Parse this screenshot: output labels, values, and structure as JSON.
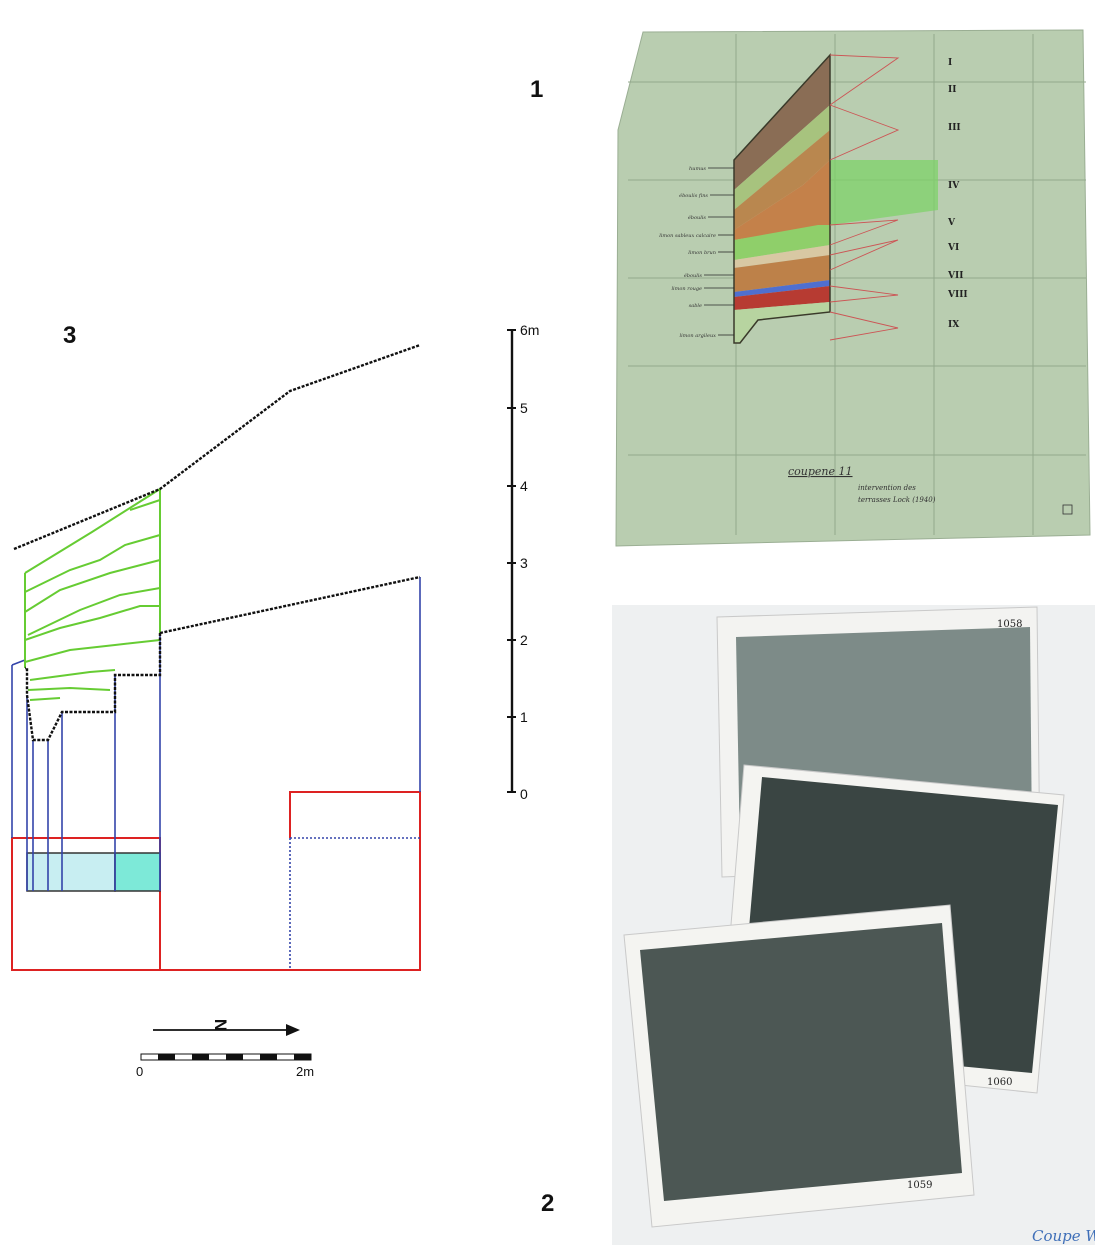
{
  "panels": {
    "p1": "1",
    "p2": "2",
    "p3": "3"
  },
  "scale_vertical": {
    "unit_label": "6m",
    "ticks": [
      "5",
      "4",
      "3",
      "2",
      "1",
      "0"
    ]
  },
  "scale_horizontal": {
    "start": "0",
    "end": "2m"
  },
  "north_arrow": {
    "letter": "N"
  },
  "drawing": {
    "title": "coupene 11",
    "note_line1": "intervention des",
    "note_line2": "terrasses Lock (1940)",
    "layer_numerals": [
      "I",
      "II",
      "III",
      "IV",
      "V",
      "VI",
      "VII",
      "VIII",
      "IX"
    ],
    "left_labels": [
      "humus",
      "éboulis fins",
      "éboulis",
      "limon sableux calcaire",
      "limon brun",
      "éboulis",
      "limon rouge",
      "sable",
      "limon argileux"
    ]
  },
  "photos": {
    "numbers": [
      "1058",
      "1060",
      "1059"
    ],
    "handwriting": "Coupe W"
  },
  "colors": {
    "profile": "#111111",
    "strata": "#66cc33",
    "projection": "#3344aa",
    "grid_red": "#dd2222",
    "box_light": "#c8eef2",
    "box_teal": "#7de9d8",
    "paper": "#b9cdb0"
  }
}
